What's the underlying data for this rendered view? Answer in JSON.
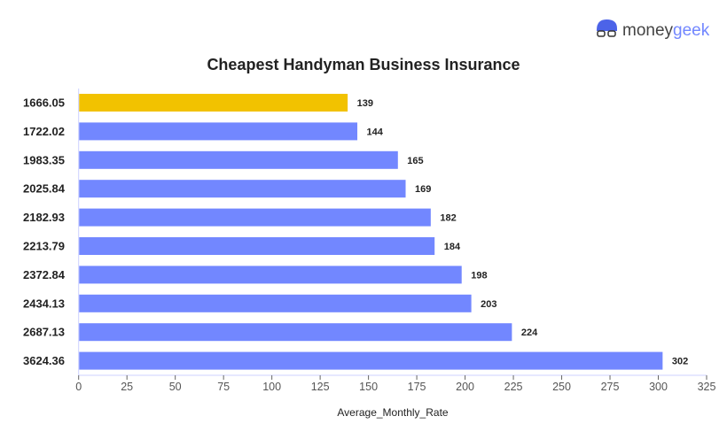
{
  "logo": {
    "text_a": "money",
    "text_b": "geek",
    "icon": "geek-face-icon"
  },
  "chart_data": {
    "type": "bar",
    "orientation": "horizontal",
    "title": "Cheapest Handyman Business Insurance",
    "xlabel": "Average_Monthly_Rate",
    "ylabel": "",
    "categories": [
      "1666.05",
      "1722.02",
      "1983.35",
      "2025.84",
      "2182.93",
      "2213.79",
      "2372.84",
      "2434.13",
      "2687.13",
      "3624.36"
    ],
    "values": [
      139,
      144,
      165,
      169,
      182,
      184,
      198,
      203,
      224,
      302
    ],
    "highlight_index": 0,
    "xlim": [
      0,
      325
    ],
    "xticks": [
      0,
      25,
      50,
      75,
      100,
      125,
      150,
      175,
      200,
      225,
      250,
      275,
      300,
      325
    ],
    "grid": false,
    "colors": {
      "bar": "#7287ff",
      "highlight": "#f2c200",
      "axis": "#ccd0ff"
    }
  }
}
